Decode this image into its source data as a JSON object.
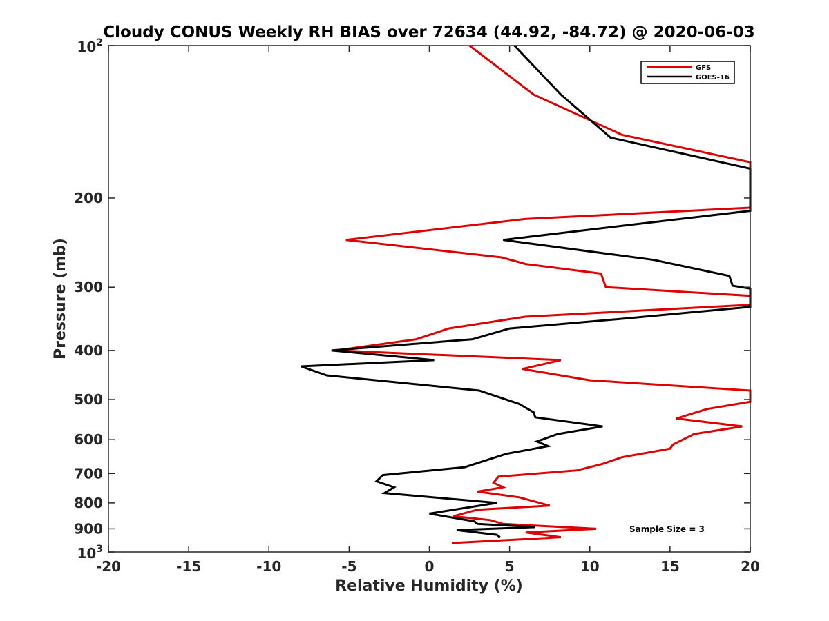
{
  "chart_data": {
    "type": "line",
    "title": "Cloudy CONUS Weekly RH BIAS over 72634 (44.92, -84.72) @ 2020-06-03",
    "xlabel": "Relative Humidity (%)",
    "ylabel": "Pressure (mb)",
    "xlim": [
      -20,
      20
    ],
    "ylim": [
      100,
      1000
    ],
    "y_scale": "log",
    "y_reversed": true,
    "grid": false,
    "legend_position": "top-right",
    "colors": {
      "GFS": "#e00000",
      "GOES-16": "#000000",
      "axis": "#262626"
    },
    "x_ticks": [
      "-20",
      "-15",
      "-10",
      "-5",
      "0",
      "5",
      "10",
      "15",
      "20"
    ],
    "y_ticks": [
      {
        "value": 100,
        "base": "10",
        "exp": "2",
        "label": ""
      },
      {
        "value": 200,
        "label": "200"
      },
      {
        "value": 300,
        "label": "300"
      },
      {
        "value": 400,
        "label": "400"
      },
      {
        "value": 500,
        "label": "500"
      },
      {
        "value": 600,
        "label": "600"
      },
      {
        "value": 700,
        "label": "700"
      },
      {
        "value": 800,
        "label": "800"
      },
      {
        "value": 900,
        "label": "900"
      },
      {
        "value": 1000,
        "base": "10",
        "exp": "3",
        "label": ""
      }
    ],
    "annotation": "Sample Size = 3",
    "series": [
      {
        "name": "GFS",
        "points": [
          [
            2.5,
            100
          ],
          [
            6.5,
            125
          ],
          [
            12.0,
            150
          ],
          [
            20.0,
            170
          ],
          [
            20.0,
            209
          ],
          [
            6.0,
            220
          ],
          [
            -5.2,
            242
          ],
          [
            4.5,
            262
          ],
          [
            6.0,
            270
          ],
          [
            10.7,
            282
          ],
          [
            11.0,
            300
          ],
          [
            20.0,
            312
          ],
          [
            20.0,
            325
          ],
          [
            6.0,
            343
          ],
          [
            1.2,
            362
          ],
          [
            -0.8,
            380
          ],
          [
            -5.8,
            400
          ],
          [
            8.2,
            418
          ],
          [
            5.8,
            435
          ],
          [
            10.0,
            458
          ],
          [
            20.0,
            480
          ],
          [
            20.0,
            505
          ],
          [
            17.3,
            522
          ],
          [
            15.4,
            545
          ],
          [
            19.5,
            565
          ],
          [
            16.5,
            585
          ],
          [
            15.2,
            613
          ],
          [
            15.0,
            625
          ],
          [
            12.0,
            650
          ],
          [
            10.8,
            670
          ],
          [
            9.2,
            690
          ],
          [
            4.3,
            710
          ],
          [
            4.0,
            730
          ],
          [
            4.6,
            745
          ],
          [
            3.0,
            760
          ],
          [
            5.6,
            780
          ],
          [
            7.5,
            810
          ],
          [
            3.0,
            825
          ],
          [
            1.5,
            850
          ],
          [
            3.8,
            865
          ],
          [
            4.6,
            880
          ],
          [
            10.4,
            900
          ],
          [
            6.0,
            915
          ],
          [
            8.2,
            935
          ],
          [
            1.4,
            960
          ]
        ]
      },
      {
        "name": "GOES-16",
        "points": [
          [
            5.3,
            100
          ],
          [
            8.2,
            125
          ],
          [
            11.3,
            152
          ],
          [
            20.0,
            175
          ],
          [
            20.0,
            212
          ],
          [
            12.5,
            226
          ],
          [
            4.6,
            242
          ],
          [
            14.0,
            265
          ],
          [
            18.7,
            285
          ],
          [
            18.9,
            298
          ],
          [
            20.0,
            302
          ],
          [
            20.0,
            328
          ],
          [
            12.6,
            345
          ],
          [
            5.0,
            362
          ],
          [
            2.7,
            380
          ],
          [
            -6.1,
            400
          ],
          [
            0.3,
            418
          ],
          [
            -8.0,
            430
          ],
          [
            -6.4,
            448
          ],
          [
            3.1,
            480
          ],
          [
            5.6,
            510
          ],
          [
            6.5,
            530
          ],
          [
            6.6,
            542
          ],
          [
            10.8,
            565
          ],
          [
            8.0,
            585
          ],
          [
            6.7,
            605
          ],
          [
            7.4,
            618
          ],
          [
            4.8,
            640
          ],
          [
            2.2,
            680
          ],
          [
            -2.9,
            705
          ],
          [
            -3.3,
            725
          ],
          [
            -2.2,
            745
          ],
          [
            -2.8,
            765
          ],
          [
            4.2,
            800
          ],
          [
            0.0,
            840
          ],
          [
            2.8,
            870
          ],
          [
            3.0,
            880
          ],
          [
            6.6,
            893
          ],
          [
            1.7,
            905
          ],
          [
            4.2,
            925
          ],
          [
            4.4,
            935
          ]
        ]
      }
    ]
  }
}
